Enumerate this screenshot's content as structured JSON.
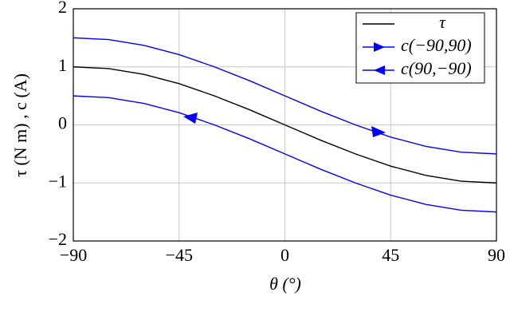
{
  "chart_data": {
    "type": "line",
    "x_label": "θ (°)",
    "y_label": "τ (N m) , c (A)",
    "x": [
      -90,
      -75,
      -60,
      -45,
      -30,
      -15,
      0,
      15,
      30,
      45,
      60,
      75,
      90
    ],
    "series": [
      {
        "name": "τ",
        "color": "#000000",
        "values": [
          1,
          0.97,
          0.87,
          0.71,
          0.5,
          0.26,
          0,
          -0.26,
          -0.5,
          -0.71,
          -0.87,
          -0.97,
          -1
        ]
      },
      {
        "name": "c(−90,90)",
        "color": "#0000ff",
        "values": [
          1.5,
          1.47,
          1.37,
          1.21,
          1,
          0.76,
          0.5,
          0.24,
          0,
          -0.21,
          -0.37,
          -0.47,
          -0.5
        ]
      },
      {
        "name": "c(90,−90)",
        "color": "#0000ff",
        "values": [
          0.5,
          0.47,
          0.37,
          0.21,
          0,
          -0.24,
          -0.5,
          -0.76,
          -1,
          -1.21,
          -1.37,
          -1.47,
          -1.5
        ]
      }
    ],
    "xlim": [
      -90,
      90
    ],
    "xticks": [
      {
        "value": -90,
        "label": "−90"
      },
      {
        "value": -45,
        "label": "−45"
      },
      0,
      45,
      90
    ],
    "ylim": [
      -2,
      2
    ],
    "yticks": [
      {
        "value": -2,
        "label": "−2"
      },
      {
        "value": -1,
        "label": "−1"
      },
      0,
      1,
      2
    ],
    "grid": true,
    "legend": "upper right"
  }
}
